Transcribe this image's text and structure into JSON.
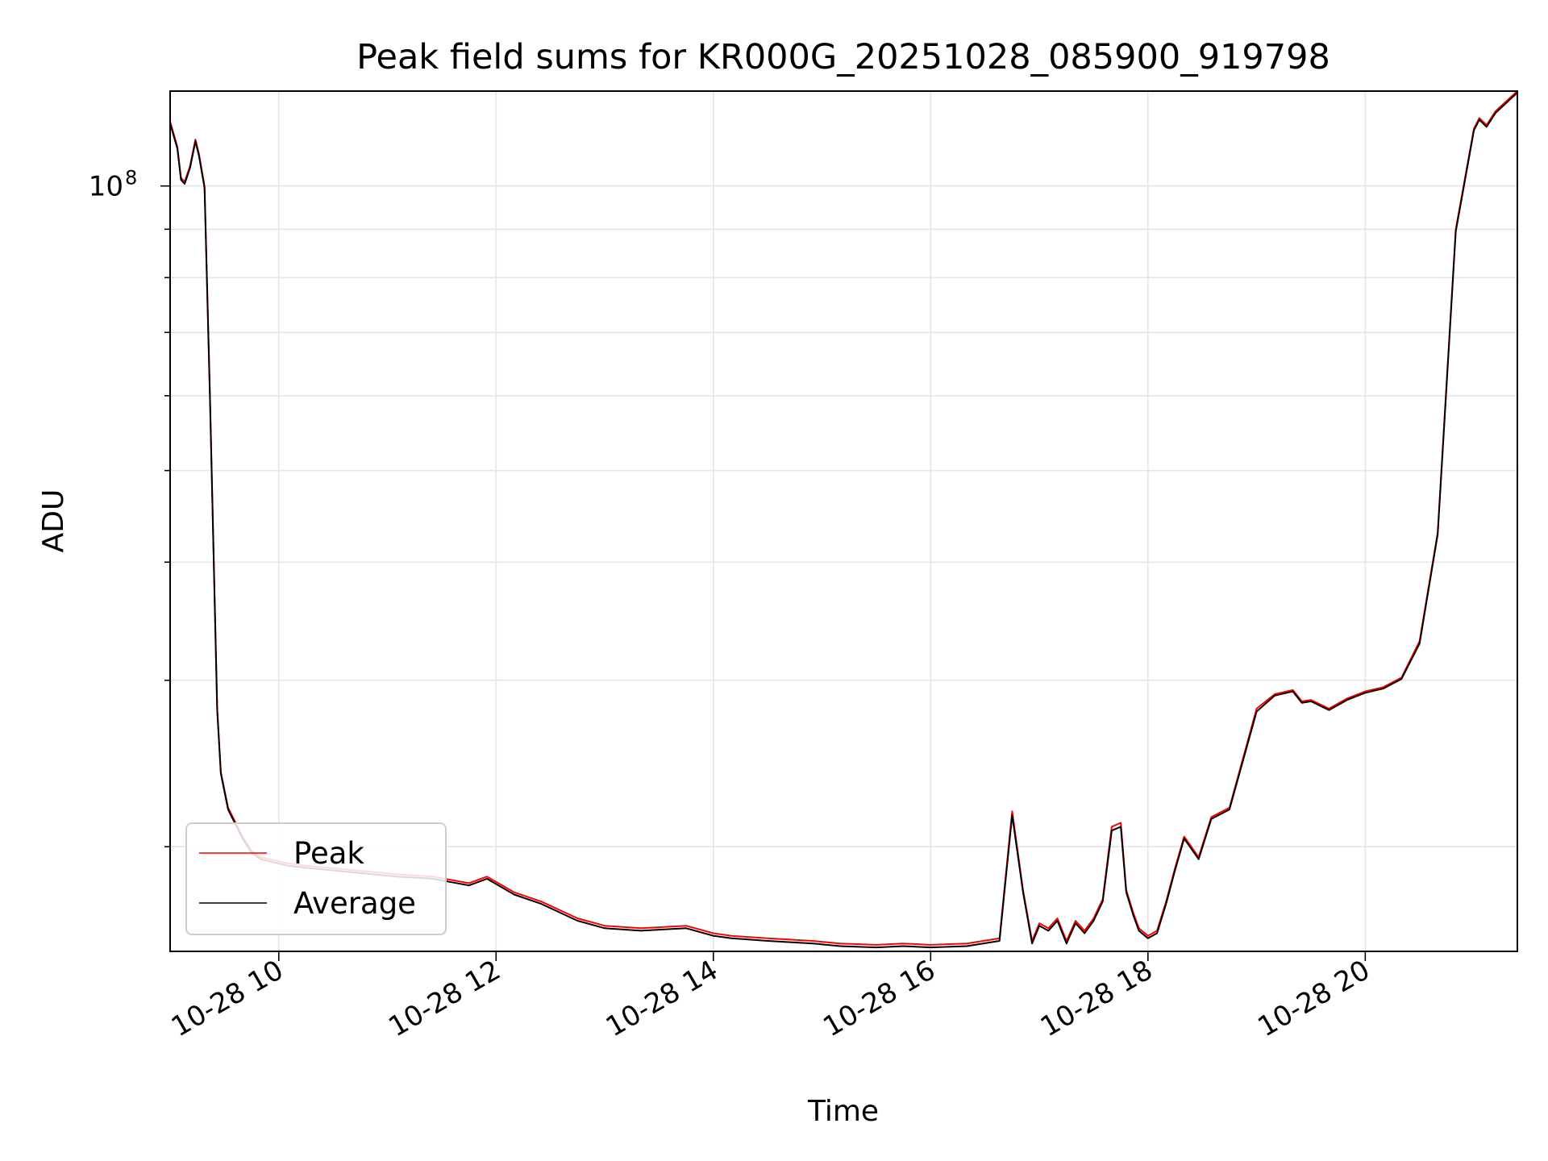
{
  "chart_data": {
    "type": "line",
    "title": "Peak field sums for KR000G_20251028_085900_919798",
    "xlabel": "Time",
    "ylabel": "ADU",
    "y_scale": "log",
    "xlim": [
      "2025-10-28 09:00",
      "2025-10-28 21:24"
    ],
    "ylim": [
      15500000,
      126000000
    ],
    "x_ticks": [
      "10-28 10",
      "10-28 12",
      "10-28 14",
      "10-28 16",
      "10-28 18",
      "10-28 20"
    ],
    "x_tick_values": [
      "2025-10-28 10:00",
      "2025-10-28 12:00",
      "2025-10-28 14:00",
      "2025-10-28 16:00",
      "2025-10-28 18:00",
      "2025-10-28 20:00"
    ],
    "y_major_ticks": [
      {
        "label": "10",
        "exponent": "8",
        "value": 100000000
      }
    ],
    "y_minor_ticks": [
      20000000,
      30000000,
      40000000,
      50000000,
      60000000,
      70000000,
      80000000,
      90000000
    ],
    "grid": true,
    "legend_position": "lower-left",
    "colors": {
      "Peak": "#ff0000",
      "Average": "#000000"
    },
    "x": [
      "09:00",
      "09:04",
      "09:06",
      "09:08",
      "09:11",
      "09:14",
      "09:16",
      "09:19",
      "09:22",
      "09:26",
      "09:28",
      "09:32",
      "09:40",
      "09:45",
      "09:50",
      "09:55",
      "10:05",
      "10:15",
      "10:40",
      "11:05",
      "11:25",
      "11:45",
      "11:55",
      "12:10",
      "12:25",
      "12:45",
      "13:00",
      "13:20",
      "13:45",
      "14:00",
      "14:10",
      "14:30",
      "14:55",
      "15:10",
      "15:30",
      "15:45",
      "16:00",
      "16:20",
      "16:38",
      "16:45",
      "16:51",
      "16:56",
      "17:00",
      "17:05",
      "17:10",
      "17:15",
      "17:20",
      "17:25",
      "17:30",
      "17:35",
      "17:40",
      "17:45",
      "17:48",
      "17:52",
      "17:55",
      "18:00",
      "18:05",
      "18:10",
      "18:15",
      "18:20",
      "18:28",
      "18:35",
      "18:45",
      "19:00",
      "19:10",
      "19:20",
      "19:25",
      "19:30",
      "19:40",
      "19:50",
      "20:00",
      "20:10",
      "20:20",
      "20:30",
      "20:40",
      "20:50",
      "21:00",
      "21:03",
      "21:07",
      "21:12",
      "21:20",
      "21:24"
    ],
    "series": [
      {
        "name": "Peak",
        "values": [
          117000000,
          110000000,
          102000000,
          101000000,
          105000000,
          112000000,
          108000000,
          100000000,
          60000000,
          28000000,
          24000000,
          22000000,
          20500000,
          19800000,
          19500000,
          19400000,
          19200000,
          19100000,
          18900000,
          18700000,
          18600000,
          18300000,
          18600000,
          17900000,
          17500000,
          16800000,
          16500000,
          16400000,
          16500000,
          16200000,
          16100000,
          16000000,
          15900000,
          15800000,
          15750000,
          15800000,
          15750000,
          15800000,
          16000000,
          21800000,
          18000000,
          15900000,
          16600000,
          16400000,
          16800000,
          15900000,
          16700000,
          16300000,
          16800000,
          17600000,
          21000000,
          21200000,
          18000000,
          17000000,
          16400000,
          16100000,
          16300000,
          17500000,
          19000000,
          20500000,
          19500000,
          21500000,
          22000000,
          28000000,
          29000000,
          29300000,
          28500000,
          28600000,
          28000000,
          28700000,
          29200000,
          29500000,
          30200000,
          33000000,
          43000000,
          90000000,
          115000000,
          118000000,
          116000000,
          120000000,
          124000000,
          126000000
        ]
      },
      {
        "name": "Average",
        "values": [
          116500000,
          109500000,
          101500000,
          100500000,
          104500000,
          111500000,
          107500000,
          99500000,
          59700000,
          27900000,
          23900000,
          21900000,
          20400000,
          19700000,
          19400000,
          19300000,
          19100000,
          19000000,
          18800000,
          18600000,
          18500000,
          18200000,
          18500000,
          17800000,
          17400000,
          16700000,
          16400000,
          16300000,
          16400000,
          16100000,
          16000000,
          15900000,
          15800000,
          15700000,
          15650000,
          15700000,
          15650000,
          15700000,
          15900000,
          21600000,
          17900000,
          15800000,
          16500000,
          16300000,
          16700000,
          15800000,
          16600000,
          16200000,
          16700000,
          17500000,
          20800000,
          21000000,
          17900000,
          16900000,
          16300000,
          16000000,
          16200000,
          17400000,
          18900000,
          20400000,
          19400000,
          21400000,
          21900000,
          27800000,
          28900000,
          29200000,
          28400000,
          28500000,
          27900000,
          28600000,
          29100000,
          29400000,
          30100000,
          32800000,
          42800000,
          89500000,
          114500000,
          117500000,
          115500000,
          119500000,
          123500000,
          125500000
        ]
      }
    ]
  }
}
